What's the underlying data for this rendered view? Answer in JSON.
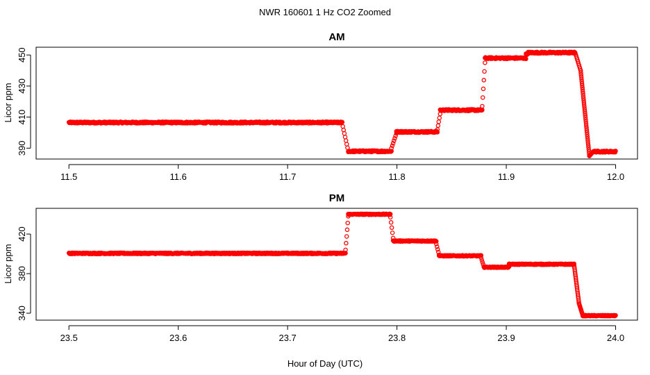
{
  "figure": {
    "title": "NWR  160601  1 Hz CO2 Zoomed",
    "xlabel": "Hour of Day (UTC)"
  },
  "colors": {
    "points": "#ff0000",
    "axes": "#000000",
    "background": "#ffffff"
  },
  "chart_data": [
    {
      "type": "scatter",
      "title": "AM",
      "xlabel": "",
      "ylabel": "Licor ppm",
      "xlim": [
        11.47,
        12.02
      ],
      "ylim": [
        383,
        455
      ],
      "xticks": [
        11.5,
        11.6,
        11.7,
        11.8,
        11.9,
        12.0
      ],
      "xtick_labels": [
        "11.5",
        "11.6",
        "11.7",
        "11.8",
        "11.9",
        "12.0"
      ],
      "yticks": [
        390,
        410,
        430,
        450
      ],
      "ytick_labels": [
        "390",
        "410",
        "430",
        "450"
      ],
      "grid": false,
      "marker": "open-circle",
      "series": [
        {
          "segments": [
            {
              "x": [
                11.5,
                11.75
              ],
              "y": 406.5,
              "noise": 0.5
            },
            {
              "x": [
                11.7555,
                11.795
              ],
              "y": 388.0,
              "noise": 0.5
            },
            {
              "x": [
                11.7995,
                11.837
              ],
              "y": 400.5,
              "noise": 0.5
            },
            {
              "x": [
                11.8395,
                11.878
              ],
              "y": 414.5,
              "noise": 0.5
            },
            {
              "x": [
                11.8805,
                11.918
              ],
              "y": 448.0,
              "noise": 0.5
            },
            {
              "x": [
                11.918,
                11.92
              ],
              "y": 450.5,
              "noise": 0.4
            },
            {
              "x": [
                11.92,
                11.963
              ],
              "y": 451.5,
              "noise": 0.5
            },
            {
              "x": [
                11.9795,
                12.0
              ],
              "y": 387.8,
              "noise": 0.5
            }
          ],
          "transitions": [
            {
              "x": [
                11.7505,
                11.7555
              ],
              "y": [
                404.0,
                388.0
              ],
              "step": 0.0007
            },
            {
              "x": [
                11.795,
                11.7995
              ],
              "y": [
                390.0,
                399.5
              ],
              "step": 0.0007
            },
            {
              "x": [
                11.837,
                11.8395
              ],
              "y": [
                402.0,
                412.0
              ],
              "step": 0.0007
            },
            {
              "x": [
                11.878,
                11.8805
              ],
              "y": [
                417.0,
                445.0
              ],
              "step": 0.0005
            },
            {
              "x": [
                11.963,
                11.968
              ],
              "y": [
                451.5,
                440.0
              ],
              "step": 0.0005
            },
            {
              "x": [
                11.968,
                11.976
              ],
              "y": [
                440.0,
                385.0
              ],
              "step": 0.0002
            },
            {
              "x": [
                11.976,
                11.9795
              ],
              "y": [
                385.0,
                387.8
              ],
              "step": 0.0004
            }
          ]
        }
      ]
    },
    {
      "type": "scatter",
      "title": "PM",
      "xlabel": "",
      "ylabel": "Licor ppm",
      "xlim": [
        23.47,
        24.02
      ],
      "ylim": [
        333,
        446
      ],
      "xticks": [
        23.5,
        23.6,
        23.7,
        23.8,
        23.9,
        24.0
      ],
      "xtick_labels": [
        "23.5",
        "23.6",
        "23.7",
        "23.8",
        "23.9",
        "24.0"
      ],
      "yticks": [
        340,
        380,
        420
      ],
      "ytick_labels": [
        "340",
        "380",
        "420"
      ],
      "grid": false,
      "marker": "open-circle",
      "series": [
        {
          "segments": [
            {
              "x": [
                23.5,
                23.753
              ],
              "y": 400.5,
              "noise": 0.6
            },
            {
              "x": [
                23.7555,
                23.794
              ],
              "y": 440.0,
              "noise": 0.5
            },
            {
              "x": [
                23.7965,
                23.836
              ],
              "y": 413.0,
              "noise": 0.5
            },
            {
              "x": [
                23.8385,
                23.877
              ],
              "y": 398.0,
              "noise": 0.5
            },
            {
              "x": [
                23.8795,
                23.9025
              ],
              "y": 386.5,
              "noise": 0.5
            },
            {
              "x": [
                23.9025,
                23.962
              ],
              "y": 389.5,
              "noise": 0.5
            },
            {
              "x": [
                23.97,
                24.0
              ],
              "y": 337.5,
              "noise": 0.5
            }
          ],
          "transitions": [
            {
              "x": [
                23.753,
                23.7555
              ],
              "y": [
                404.0,
                438.0
              ],
              "step": 0.0005
            },
            {
              "x": [
                23.794,
                23.7965
              ],
              "y": [
                437.0,
                416.0
              ],
              "step": 0.0006
            },
            {
              "x": [
                23.836,
                23.8385
              ],
              "y": [
                410.0,
                399.0
              ],
              "step": 0.0006
            },
            {
              "x": [
                23.877,
                23.8795
              ],
              "y": [
                396.0,
                387.0
              ],
              "step": 0.0006
            },
            {
              "x": [
                23.962,
                23.9665
              ],
              "y": [
                389.0,
                350.0
              ],
              "step": 0.0002
            },
            {
              "x": [
                23.9665,
                23.97
              ],
              "y": [
                350.0,
                337.5
              ],
              "step": 0.0003
            }
          ]
        }
      ]
    }
  ]
}
